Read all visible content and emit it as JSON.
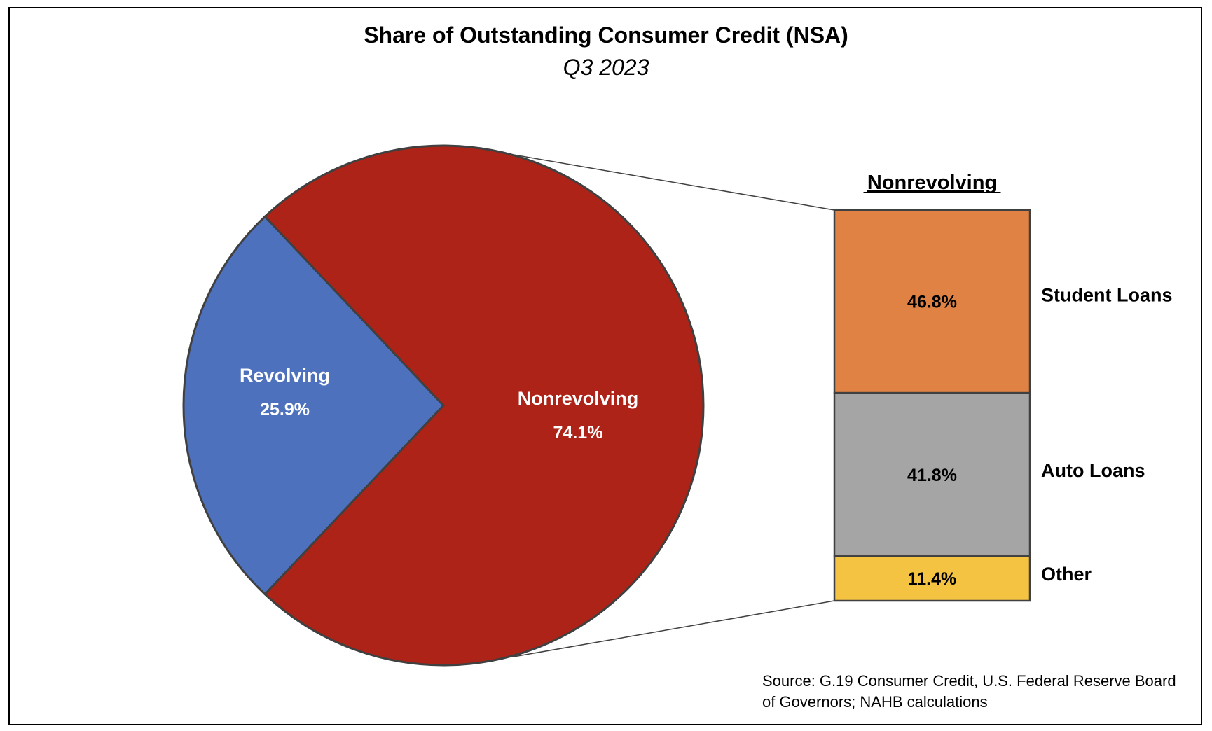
{
  "chart_data": {
    "type": "pie",
    "title": "Share of Outstanding Consumer Credit (NSA)",
    "subtitle": "Q3 2023",
    "pie": {
      "slices": [
        {
          "label": "Revolving",
          "value": 25.9,
          "value_label": "25.9%",
          "color": "#4E71BE"
        },
        {
          "label": "Nonrevolving",
          "value": 74.1,
          "value_label": "74.1%",
          "color": "#AD2317"
        }
      ]
    },
    "breakdown": {
      "title": "Nonrevolving",
      "type": "stacked-bar",
      "segments": [
        {
          "label": "Student Loans",
          "value": 46.8,
          "value_label": "46.8%",
          "color": "#DF8243"
        },
        {
          "label": "Auto Loans",
          "value": 41.8,
          "value_label": "41.8%",
          "color": "#A5A5A5"
        },
        {
          "label": "Other",
          "value": 11.4,
          "value_label": "11.4%",
          "color": "#F4C342"
        }
      ]
    },
    "source": "Source: G.19 Consumer Credit, U.S. Federal Reserve Board of Governors; NAHB calculations"
  }
}
